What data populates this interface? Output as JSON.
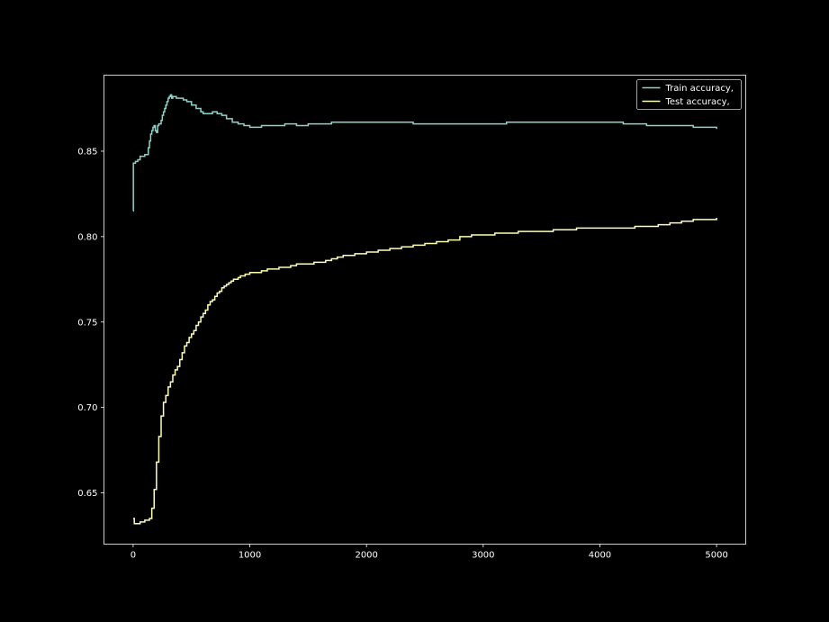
{
  "chart_data": {
    "type": "line",
    "title": "",
    "xlabel": "",
    "ylabel": "",
    "xlim": [
      -250,
      5250
    ],
    "ylim": [
      0.62,
      0.8945
    ],
    "xticks": [
      0,
      1000,
      2000,
      3000,
      4000,
      5000
    ],
    "yticks": [
      0.65,
      0.7,
      0.75,
      0.8,
      0.85
    ],
    "ytick_labels": [
      "0.65",
      "0.70",
      "0.75",
      "0.80",
      "0.85"
    ],
    "grid": false,
    "legend_position": "top-right",
    "background": "#000000",
    "axis_color": "#ffffff",
    "series": [
      {
        "name": "Train accuracy,",
        "color": "#8dd3c7",
        "x": [
          0,
          2,
          5,
          10,
          20,
          40,
          60,
          80,
          100,
          120,
          130,
          140,
          150,
          160,
          170,
          180,
          190,
          200,
          210,
          220,
          230,
          240,
          250,
          260,
          270,
          280,
          290,
          300,
          310,
          320,
          330,
          340,
          350,
          370,
          400,
          430,
          460,
          500,
          540,
          580,
          600,
          640,
          680,
          720,
          760,
          800,
          850,
          900,
          950,
          1000,
          1050,
          1100,
          1200,
          1300,
          1400,
          1500,
          1600,
          1700,
          1800,
          2000,
          2200,
          2400,
          2600,
          2800,
          3000,
          3200,
          3300,
          3400,
          3600,
          3800,
          4000,
          4200,
          4400,
          4600,
          4800,
          5000
        ],
        "y": [
          0.815,
          0.843,
          0.843,
          0.843,
          0.844,
          0.845,
          0.847,
          0.847,
          0.848,
          0.848,
          0.852,
          0.856,
          0.86,
          0.862,
          0.864,
          0.865,
          0.862,
          0.861,
          0.865,
          0.866,
          0.866,
          0.868,
          0.871,
          0.873,
          0.875,
          0.877,
          0.879,
          0.881,
          0.882,
          0.883,
          0.881,
          0.882,
          0.882,
          0.881,
          0.881,
          0.88,
          0.879,
          0.877,
          0.875,
          0.873,
          0.872,
          0.872,
          0.873,
          0.872,
          0.871,
          0.869,
          0.867,
          0.866,
          0.865,
          0.864,
          0.864,
          0.865,
          0.865,
          0.866,
          0.865,
          0.866,
          0.866,
          0.867,
          0.867,
          0.867,
          0.867,
          0.866,
          0.866,
          0.866,
          0.866,
          0.867,
          0.867,
          0.867,
          0.867,
          0.867,
          0.867,
          0.866,
          0.865,
          0.865,
          0.864,
          0.863
        ]
      },
      {
        "name": "Test accuracy,",
        "color": "#ffffb3",
        "x": [
          0,
          10,
          20,
          40,
          60,
          80,
          100,
          120,
          140,
          160,
          180,
          200,
          220,
          240,
          260,
          280,
          300,
          320,
          340,
          360,
          380,
          400,
          420,
          440,
          460,
          480,
          500,
          520,
          540,
          560,
          580,
          600,
          620,
          640,
          660,
          680,
          700,
          720,
          740,
          760,
          780,
          800,
          820,
          840,
          860,
          880,
          900,
          920,
          940,
          960,
          980,
          1000,
          1050,
          1100,
          1150,
          1200,
          1250,
          1300,
          1350,
          1400,
          1450,
          1500,
          1550,
          1600,
          1650,
          1700,
          1750,
          1800,
          1850,
          1900,
          2000,
          2100,
          2200,
          2300,
          2400,
          2500,
          2600,
          2700,
          2800,
          2900,
          3000,
          3100,
          3200,
          3300,
          3400,
          3500,
          3600,
          3700,
          3800,
          3900,
          4000,
          4100,
          4200,
          4300,
          4400,
          4500,
          4600,
          4700,
          4800,
          4900,
          4950,
          5000
        ],
        "y": [
          0.635,
          0.632,
          0.632,
          0.632,
          0.633,
          0.633,
          0.634,
          0.634,
          0.635,
          0.641,
          0.652,
          0.668,
          0.683,
          0.695,
          0.703,
          0.707,
          0.712,
          0.715,
          0.719,
          0.722,
          0.724,
          0.728,
          0.732,
          0.736,
          0.738,
          0.741,
          0.743,
          0.745,
          0.748,
          0.75,
          0.753,
          0.755,
          0.757,
          0.76,
          0.762,
          0.763,
          0.765,
          0.767,
          0.768,
          0.77,
          0.771,
          0.772,
          0.773,
          0.774,
          0.775,
          0.775,
          0.776,
          0.777,
          0.777,
          0.778,
          0.778,
          0.779,
          0.779,
          0.78,
          0.781,
          0.781,
          0.782,
          0.782,
          0.783,
          0.784,
          0.784,
          0.784,
          0.785,
          0.785,
          0.786,
          0.787,
          0.788,
          0.789,
          0.789,
          0.79,
          0.791,
          0.792,
          0.793,
          0.794,
          0.795,
          0.796,
          0.797,
          0.798,
          0.8,
          0.801,
          0.801,
          0.802,
          0.802,
          0.803,
          0.803,
          0.803,
          0.804,
          0.804,
          0.805,
          0.805,
          0.805,
          0.805,
          0.805,
          0.806,
          0.806,
          0.807,
          0.808,
          0.809,
          0.81,
          0.81,
          0.81,
          0.811
        ]
      }
    ]
  }
}
